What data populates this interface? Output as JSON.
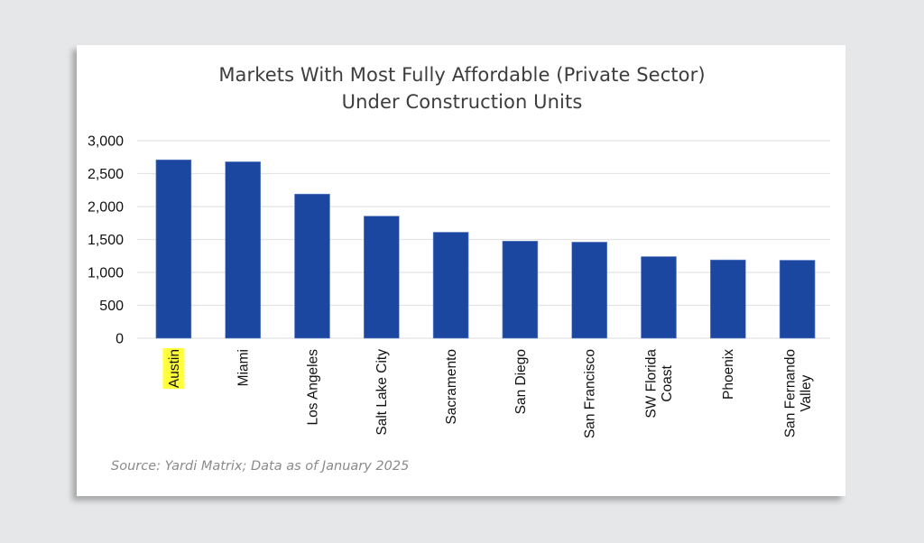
{
  "colors": {
    "bar": "#1b47a0",
    "bar_edge": "#6f8fd0",
    "grid": "#e3e3e3",
    "highlight": "#ffff3c",
    "tick_text": "#111111"
  },
  "chart_data": {
    "type": "bar",
    "title": "Markets With Most Fully Affordable (Private Sector) Under Construction Units",
    "title_lines": [
      "Markets With Most Fully Affordable (Private Sector)",
      "Under Construction Units"
    ],
    "xlabel": "",
    "ylabel": "",
    "categories": [
      "Austin",
      "Miami",
      "Los Angeles",
      "Salt Lake City",
      "Sacramento",
      "San Diego",
      "San Francisco",
      "SW Florida Coast",
      "Phoenix",
      "San Fernando Valley"
    ],
    "category_label_lines": [
      [
        "Austin"
      ],
      [
        "Miami"
      ],
      [
        "Los Angeles"
      ],
      [
        "Salt Lake City"
      ],
      [
        "Sacramento"
      ],
      [
        "San Diego"
      ],
      [
        "San Francisco"
      ],
      [
        "SW Florida",
        "Coast"
      ],
      [
        "Phoenix"
      ],
      [
        "San Fernando",
        "Valley"
      ]
    ],
    "highlighted_category": "Austin",
    "values": [
      2710,
      2680,
      2190,
      1855,
      1610,
      1475,
      1460,
      1240,
      1190,
      1185
    ],
    "ylim": [
      0,
      3000
    ],
    "yticks": [
      0,
      500,
      1000,
      1500,
      2000,
      2500,
      3000
    ],
    "ytick_labels": [
      "0",
      "500",
      "1,000",
      "1,500",
      "2,000",
      "2,500",
      "3,000"
    ],
    "grid": true,
    "legend": "none"
  },
  "source_note": "Source: Yardi Matrix; Data as of January 2025"
}
